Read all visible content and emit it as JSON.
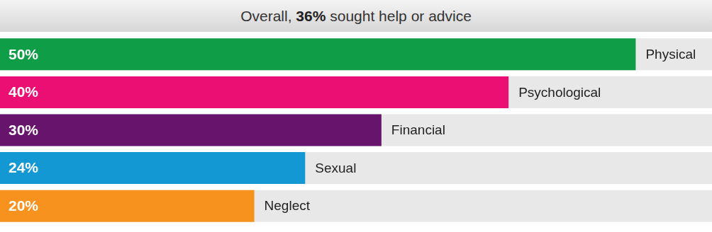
{
  "chart_data": {
    "type": "bar",
    "title": "Overall, 36% sought help or advice",
    "orientation": "horizontal",
    "categories": [
      "Physical",
      "Psychological",
      "Financial",
      "Sexual",
      "Neglect"
    ],
    "values": [
      50,
      40,
      30,
      24,
      20
    ],
    "value_labels": [
      "50%",
      "40%",
      "30%",
      "24%",
      "20%"
    ],
    "colors": [
      "#0f9d48",
      "#ec0f73",
      "#66146c",
      "#1398d4",
      "#f7921e"
    ],
    "xlim": [
      0,
      56
    ],
    "data_labels": true,
    "tick_labels": false,
    "grid": false
  }
}
